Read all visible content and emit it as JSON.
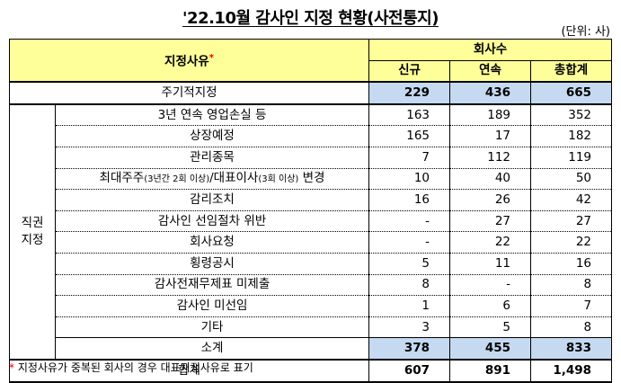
{
  "title_a": "'22.10월 감사인 지정 현황",
  "title_b": "(사전통지)",
  "unit": "(단위: 사)",
  "header": {
    "reason": "지정사유",
    "reason_mark": "*",
    "company_count": "회사수",
    "new": "신규",
    "cont": "연속",
    "total": "총합계"
  },
  "periodic": {
    "label": "주기적지정",
    "new": "229",
    "cont": "436",
    "total": "665"
  },
  "direct_label_1": "직권",
  "direct_label_2": "지정",
  "rows": [
    {
      "label": "3년 연속 영업손실 등",
      "new": "163",
      "cont": "189",
      "total": "352"
    },
    {
      "label": "상장예정",
      "new": "165",
      "cont": "17",
      "total": "182"
    },
    {
      "label": "관리종목",
      "new": "7",
      "cont": "112",
      "total": "119"
    },
    {
      "label_a": "최대주주",
      "label_b": "(3년간 2회 이상)",
      "label_c": "/대표이사",
      "label_d": "(3회 이상)",
      "label_e": " 변경",
      "new": "10",
      "cont": "40",
      "total": "50"
    },
    {
      "label": "감리조치",
      "new": "16",
      "cont": "26",
      "total": "42"
    },
    {
      "label": "감사인 선임절차 위반",
      "new": "-",
      "cont": "27",
      "total": "27"
    },
    {
      "label": "회사요청",
      "new": "-",
      "cont": "22",
      "total": "22"
    },
    {
      "label": "횡령공시",
      "new": "5",
      "cont": "11",
      "total": "16"
    },
    {
      "label": "감사전재무제표 미제출",
      "new": "8",
      "cont": "-",
      "total": "8"
    },
    {
      "label": "감사인 미선임",
      "new": "1",
      "cont": "6",
      "total": "7"
    },
    {
      "label": "기타",
      "new": "3",
      "cont": "5",
      "total": "8"
    }
  ],
  "subtotal": {
    "label": "소계",
    "new": "378",
    "cont": "455",
    "total": "833"
  },
  "grand": {
    "label": "합계",
    "new": "607",
    "cont": "891",
    "total": "1,498"
  },
  "note_mark": "*",
  "note": " 지정사유가 중복된 회사의 경우 대표지정사유로 표기",
  "colors": {
    "header_bg": "#ffff99",
    "highlight_bg": "#c5d9f1",
    "asterisk": "#e00000"
  }
}
